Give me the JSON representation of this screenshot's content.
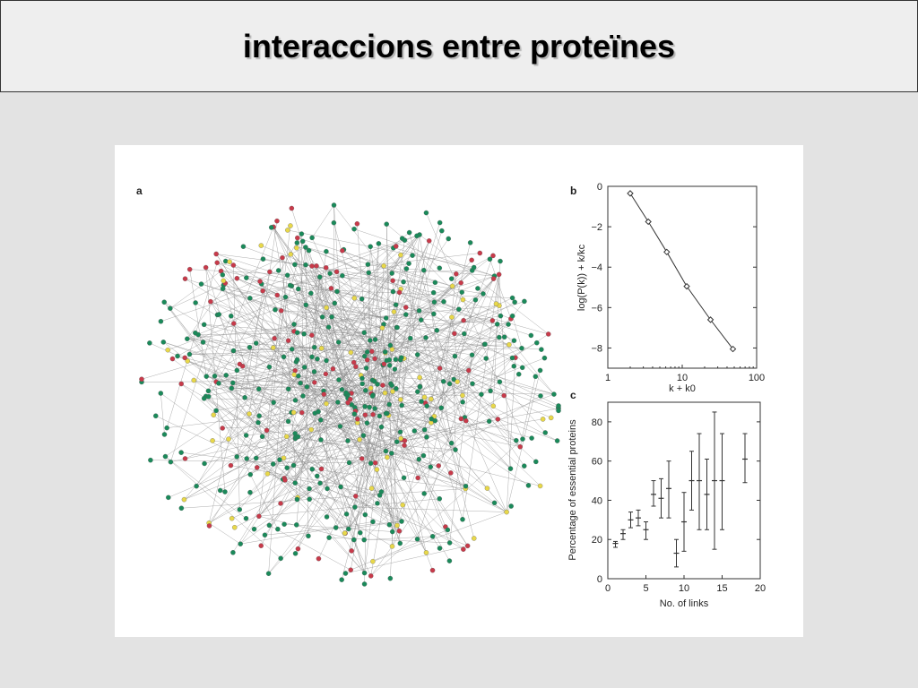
{
  "slide": {
    "title": "interaccions entre proteïnes"
  },
  "colors": {
    "node_green": "#1a8a5a",
    "node_red": "#c83a4a",
    "node_yellow": "#e8d84a",
    "edge": "#8a8a8a"
  },
  "panel_a": {
    "letter": "a"
  },
  "chart_data": [
    {
      "panel": "b",
      "type": "line",
      "xscale": "log",
      "xlim": [
        1,
        100
      ],
      "ylim": [
        -9,
        0
      ],
      "xlabel": "k + k0",
      "ylabel": "log(P(k)) + k/kc",
      "xticks": [
        1,
        10,
        100
      ],
      "xtick_labels": [
        "1",
        "10",
        "100"
      ],
      "yticks": [
        0,
        -2,
        -4,
        -6,
        -8
      ],
      "ytick_labels": [
        "0",
        "−2",
        "−4",
        "−6",
        "−8"
      ],
      "x": [
        2,
        3.5,
        6.2,
        11.5,
        24,
        48
      ],
      "y": [
        -0.35,
        -1.75,
        -3.25,
        -4.95,
        -6.6,
        -8.05
      ],
      "marker": "diamond",
      "grid": false
    },
    {
      "panel": "c",
      "type": "scatter",
      "errorbars": true,
      "xlim": [
        0,
        20
      ],
      "ylim": [
        0,
        90
      ],
      "xlabel": "No. of links",
      "ylabel": "Percentage of essential proteins",
      "xticks": [
        0,
        5,
        10,
        15,
        20
      ],
      "xtick_labels": [
        "0",
        "5",
        "10",
        "15",
        "20"
      ],
      "yticks": [
        0,
        20,
        40,
        60,
        80
      ],
      "ytick_labels": [
        "0",
        "20",
        "40",
        "60",
        "80"
      ],
      "x": [
        1,
        2,
        3,
        4,
        5,
        6,
        7,
        8,
        9,
        10,
        11,
        12,
        13,
        14,
        15,
        18
      ],
      "y": [
        18,
        23,
        30,
        31,
        25,
        43,
        41,
        46,
        13,
        29,
        50,
        50,
        43,
        50,
        50,
        61
      ],
      "low": [
        16,
        20,
        26,
        27,
        20,
        37,
        31,
        31,
        6,
        14,
        35,
        25,
        25,
        15,
        25,
        49
      ],
      "high": [
        19,
        25,
        34,
        35,
        29,
        50,
        51,
        60,
        20,
        44,
        65,
        74,
        61,
        85,
        74,
        74
      ],
      "grid": false
    }
  ]
}
